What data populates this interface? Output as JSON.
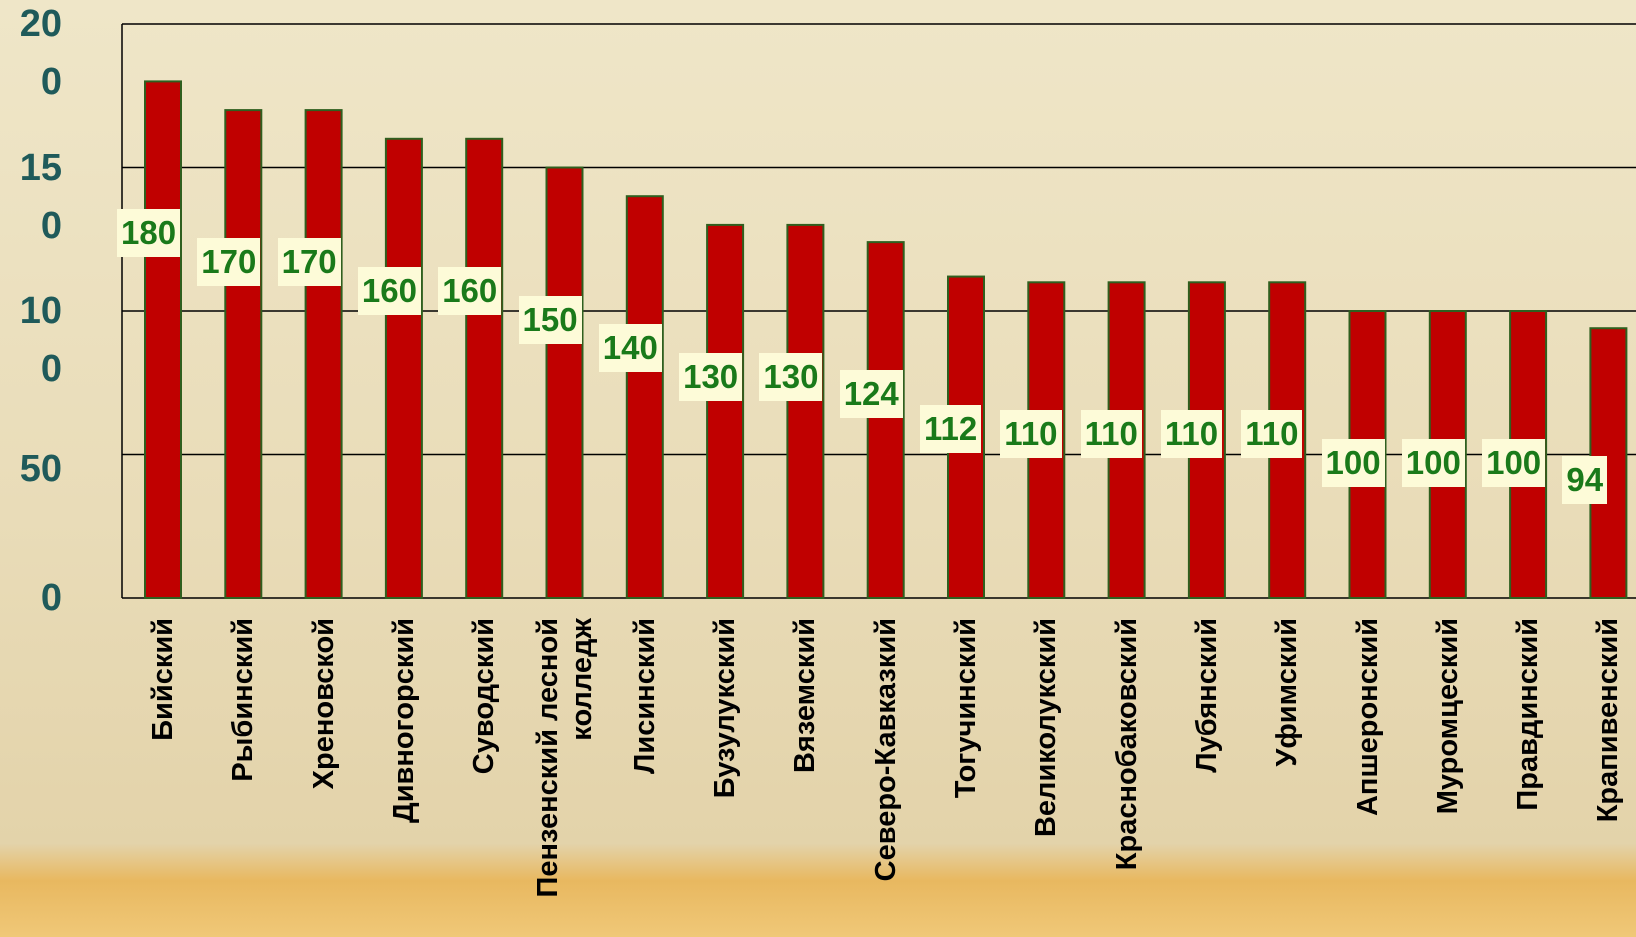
{
  "chart_data": {
    "type": "bar",
    "categories": [
      "Бийский",
      "Рыбинский",
      "Хреновской",
      "Дивногорский",
      "Суводский",
      "Пензенский лесной колледж",
      "Лисинский",
      "Бузулукский",
      "Вяземский",
      "Северо-Кавказкий",
      "Тогучинский",
      "Великолукский",
      "Краснобаковский",
      "Лубянский",
      "Уфимский",
      "Апшеронский",
      "Муромцеский",
      "Правдинский",
      "Крапивенский"
    ],
    "values": [
      180,
      170,
      170,
      160,
      160,
      150,
      140,
      130,
      130,
      124,
      112,
      110,
      110,
      110,
      110,
      100,
      100,
      100,
      94
    ],
    "color": "#c00000",
    "ylim": [
      0,
      200
    ],
    "yticks": [
      0,
      50,
      100,
      150,
      200
    ],
    "grid": true
  }
}
